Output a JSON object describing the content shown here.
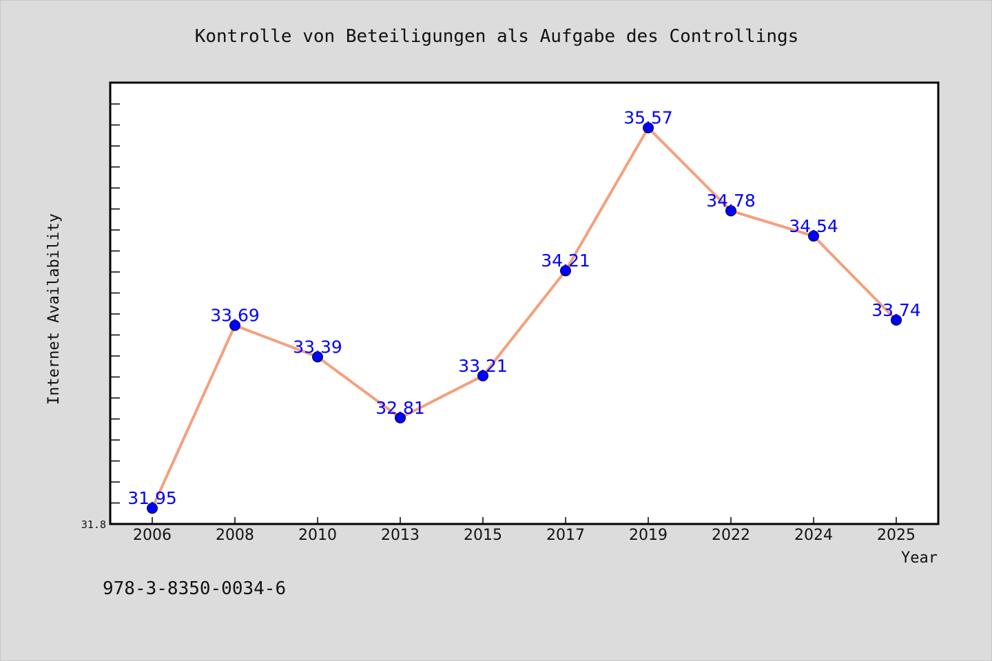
{
  "chart_data": {
    "type": "line",
    "title": "Kontrolle von Beteiligungen als Aufgabe des Controllings",
    "xlabel": "Year",
    "ylabel": "Internet Availability",
    "categories": [
      "2006",
      "2008",
      "2010",
      "2013",
      "2015",
      "2017",
      "2019",
      "2022",
      "2024",
      "2025"
    ],
    "series": [
      {
        "values": [
          31.95,
          33.69,
          33.39,
          32.81,
          33.21,
          34.21,
          35.57,
          34.78,
          34.54,
          33.74
        ],
        "labels": [
          "31.95",
          "33.69",
          "33.39",
          "32.81",
          "33.21",
          "34.21",
          "35.57",
          "34.78",
          "34.54",
          "33.74"
        ]
      }
    ],
    "y_tick_labels": [
      "31.8"
    ],
    "ylim": [
      31.8,
      36.0
    ],
    "grid": false,
    "legend": "none",
    "colors": {
      "line": "#f4a07c",
      "marker": "#0000ff",
      "label": "#0000ff",
      "background": "#dcdcdc",
      "plot_background": "#ffffff"
    }
  },
  "footer": {
    "code": "978-3-8350-0034-6"
  }
}
